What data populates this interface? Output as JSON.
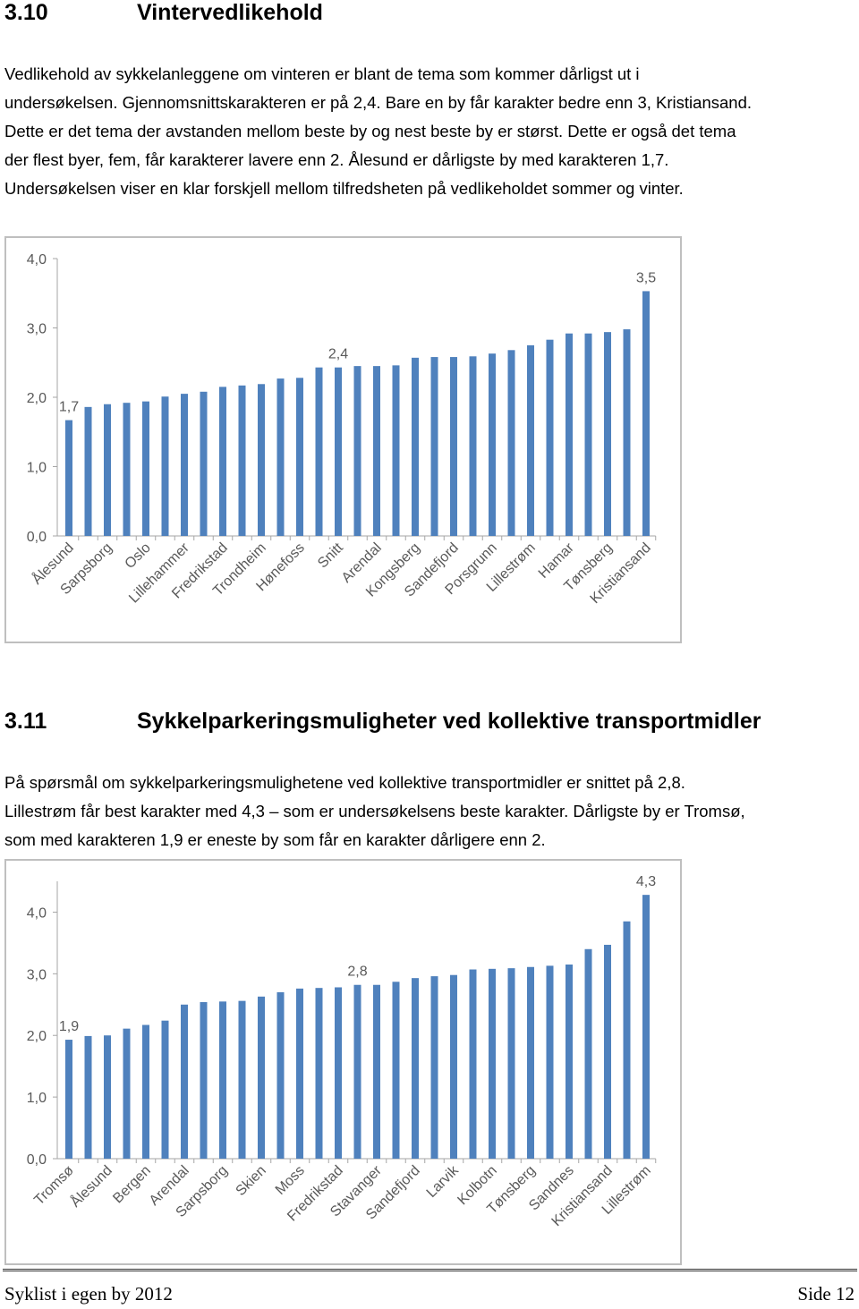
{
  "section1": {
    "heading_number": "3.10",
    "heading": "Vintervedlikehold",
    "lines": [
      "Vedlikehold av sykkelanleggene om vinteren er blant de tema som kommer dårligst ut i",
      "undersøkelsen. Gjennomsnittskarakteren er på 2,4. Bare en by får karakter bedre enn 3, Kristiansand.",
      "Dette er det tema der avstanden mellom beste by og nest beste by er størst.  Dette er også det tema",
      "der flest byer, fem, får karakterer lavere enn 2. Ålesund er dårligste by med karakteren 1,7.",
      "Undersøkelsen viser en klar forskjell mellom tilfredsheten på vedlikeholdet sommer og vinter."
    ]
  },
  "section2": {
    "heading_number": "3.11",
    "heading": "Sykkelparkeringsmuligheter ved kollektive transportmidler",
    "lines": [
      "På spørsmål om sykkelparkeringsmulighetene ved kollektive transportmidler er snittet på 2,8.",
      "Lillestrøm får best karakter med 4,3 – som er undersøkelsens beste karakter. Dårligste by er Tromsø,",
      "som med karakteren 1,9 er eneste by som får en karakter dårligere enn 2."
    ]
  },
  "chart_data": [
    {
      "type": "bar",
      "color": "#4f81bd",
      "categories": [
        "Ålesund",
        null,
        "Sarpsborg",
        null,
        "Oslo",
        null,
        "Lillehammer",
        null,
        "Fredrikstad",
        null,
        "Trondheim",
        null,
        "Hønefoss",
        null,
        "Snitt",
        null,
        "Arendal",
        null,
        "Kongsberg",
        null,
        "Sandefjord",
        null,
        "Porsgrunn",
        null,
        "Lillestrøm",
        null,
        "Hamar",
        null,
        "Tønsberg",
        null,
        "Kristiansand"
      ],
      "values": [
        1.67,
        1.86,
        1.9,
        1.92,
        1.94,
        2.01,
        2.05,
        2.08,
        2.15,
        2.17,
        2.19,
        2.27,
        2.28,
        2.43,
        2.43,
        2.45,
        2.45,
        2.46,
        2.57,
        2.58,
        2.58,
        2.59,
        2.63,
        2.68,
        2.75,
        2.83,
        2.92,
        2.92,
        2.94,
        2.98,
        3.53
      ],
      "value_labels": [
        "1,7",
        null,
        null,
        null,
        null,
        null,
        null,
        null,
        null,
        null,
        null,
        null,
        null,
        null,
        "2,4",
        null,
        null,
        null,
        null,
        null,
        null,
        null,
        null,
        null,
        null,
        null,
        null,
        null,
        null,
        null,
        "3,5"
      ],
      "ylim": [
        0,
        4
      ],
      "yticks": [
        {
          "value": 0,
          "label": "0,0"
        },
        {
          "value": 1,
          "label": "1,0"
        },
        {
          "value": 2,
          "label": "2,0"
        },
        {
          "value": 3,
          "label": "3,0"
        },
        {
          "value": 4,
          "label": "4,0"
        }
      ]
    },
    {
      "type": "bar",
      "color": "#4f81bd",
      "categories": [
        "Tromsø",
        null,
        "Ålesund",
        null,
        "Bergen",
        null,
        "Arendal",
        null,
        "Sarpsborg",
        null,
        "Skien",
        null,
        "Moss",
        null,
        "Fredrikstad",
        null,
        "Stavanger",
        null,
        "Sandefjord",
        null,
        "Larvik",
        null,
        "Kolbotn",
        null,
        "Tønsberg",
        null,
        "Sandnes",
        null,
        "Kristiansand",
        null,
        "Lillestrøm"
      ],
      "values": [
        1.93,
        1.99,
        2.0,
        2.11,
        2.17,
        2.24,
        2.5,
        2.54,
        2.55,
        2.56,
        2.63,
        2.7,
        2.76,
        2.77,
        2.78,
        2.82,
        2.82,
        2.87,
        2.93,
        2.96,
        2.98,
        3.07,
        3.08,
        3.09,
        3.11,
        3.13,
        3.15,
        3.4,
        3.47,
        3.85,
        4.28
      ],
      "value_labels": [
        "1,9",
        null,
        null,
        null,
        null,
        null,
        null,
        null,
        null,
        null,
        null,
        null,
        null,
        null,
        null,
        "2,8",
        null,
        null,
        null,
        null,
        null,
        null,
        null,
        null,
        null,
        null,
        null,
        null,
        null,
        null,
        "4,3"
      ],
      "ylim": [
        0,
        4.5
      ],
      "yticks": [
        {
          "value": 0,
          "label": "0,0"
        },
        {
          "value": 1,
          "label": "1,0"
        },
        {
          "value": 2,
          "label": "2,0"
        },
        {
          "value": 3,
          "label": "3,0"
        },
        {
          "value": 4,
          "label": "4,0"
        }
      ]
    }
  ],
  "footer": {
    "left": "Syklist i egen by 2012",
    "right": "Side 12"
  }
}
